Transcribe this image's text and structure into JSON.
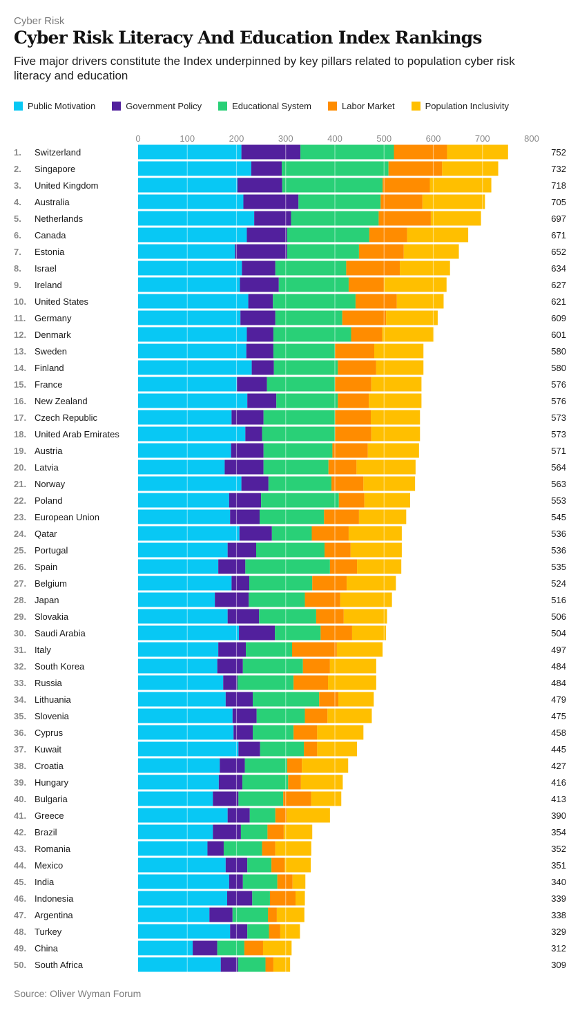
{
  "kicker": "Cyber Risk",
  "colors": {
    "public_motivation": "#08C8F4",
    "government_policy": "#52209D",
    "educational_system": "#29D077",
    "labor_market": "#FF8C00",
    "population_inclusivity": "#FFBF00"
  },
  "chart_data": {
    "type": "bar",
    "orientation": "horizontal",
    "stacked": true,
    "title": "Cyber Risk Literacy And Education Index Rankings",
    "subtitle": "Five major drivers constitute the Index underpinned by key pillars related to population cyber risk literacy and education",
    "xlabel": "",
    "ylabel": "",
    "xlim": [
      0,
      800
    ],
    "xticks": [
      0,
      100,
      200,
      300,
      400,
      500,
      600,
      700,
      800
    ],
    "grid": true,
    "legend_position": "top-left",
    "source": "Source: Oliver Wyman Forum",
    "categories": [
      "Switzerland",
      "Singapore",
      "United Kingdom",
      "Australia",
      "Netherlands",
      "Canada",
      "Estonia",
      "Israel",
      "Ireland",
      "United States",
      "Germany",
      "Denmark",
      "Sweden",
      "Finland",
      "France",
      "New Zealand",
      "Czech Republic",
      "United Arab Emirates",
      "Austria",
      "Latvia",
      "Norway",
      "Poland",
      "European Union",
      "Qatar",
      "Portugal",
      "Spain",
      "Belgium",
      "Japan",
      "Slovakia",
      "Saudi Arabia",
      "Italy",
      "South Korea",
      "Russia",
      "Lithuania",
      "Slovenia",
      "Cyprus",
      "Kuwait",
      "Croatia",
      "Hungary",
      "Bulgaria",
      "Greece",
      "Brazil",
      "Romania",
      "Mexico",
      "India",
      "Indonesia",
      "Argentina",
      "Turkey",
      "China",
      "South Africa"
    ],
    "ranks": [
      "1.",
      "2.",
      "3.",
      "4.",
      "5.",
      "6.",
      "7.",
      "8.",
      "9.",
      "10.",
      "11.",
      "12.",
      "13.",
      "14.",
      "15.",
      "16.",
      "17.",
      "18.",
      "19.",
      "20.",
      "21.",
      "22.",
      "23.",
      "24.",
      "25.",
      "26.",
      "27.",
      "28.",
      "29.",
      "30.",
      "31.",
      "32.",
      "33.",
      "34.",
      "35.",
      "36.",
      "37.",
      "38.",
      "39.",
      "40.",
      "41.",
      "42.",
      "43.",
      "44.",
      "45.",
      "46.",
      "47.",
      "48.",
      "49.",
      "50."
    ],
    "totals": [
      752,
      732,
      718,
      705,
      697,
      671,
      652,
      634,
      627,
      621,
      609,
      601,
      580,
      580,
      576,
      576,
      573,
      573,
      571,
      564,
      563,
      553,
      545,
      536,
      536,
      535,
      524,
      516,
      506,
      504,
      497,
      484,
      484,
      479,
      475,
      458,
      445,
      427,
      416,
      413,
      390,
      354,
      352,
      351,
      340,
      339,
      338,
      329,
      312,
      309
    ],
    "series": [
      {
        "name": "Public Motivation",
        "color_key": "public_motivation",
        "values": [
          210,
          230,
          202,
          214,
          236,
          221,
          197,
          211,
          207,
          224,
          208,
          221,
          220,
          231,
          201,
          222,
          190,
          218,
          189,
          176,
          210,
          185,
          187,
          206,
          182,
          163,
          190,
          156,
          182,
          205,
          163,
          161,
          173,
          178,
          192,
          194,
          204,
          166,
          164,
          152,
          182,
          152,
          141,
          178,
          185,
          181,
          145,
          187,
          111,
          168
        ]
      },
      {
        "name": "Government Policy",
        "color_key": "government_policy",
        "values": [
          120,
          62,
          91,
          112,
          75,
          82,
          106,
          68,
          79,
          50,
          71,
          54,
          55,
          45,
          61,
          59,
          65,
          34,
          66,
          79,
          55,
          65,
          60,
          66,
          58,
          55,
          36,
          69,
          64,
          73,
          56,
          52,
          29,
          55,
          49,
          39,
          44,
          51,
          48,
          52,
          45,
          57,
          33,
          44,
          28,
          51,
          47,
          35,
          50,
          35
        ]
      },
      {
        "name": "Educational System",
        "color_key": "educational_system",
        "values": [
          190,
          217,
          204,
          167,
          178,
          167,
          146,
          144,
          142,
          168,
          136,
          158,
          125,
          130,
          138,
          125,
          145,
          148,
          140,
          132,
          128,
          158,
          131,
          81,
          139,
          172,
          128,
          114,
          116,
          93,
          94,
          122,
          114,
          135,
          98,
          83,
          89,
          86,
          93,
          91,
          52,
          54,
          78,
          49,
          70,
          36,
          72,
          44,
          55,
          56
        ]
      },
      {
        "name": "Labor Market",
        "color_key": "labor_market",
        "values": [
          108,
          109,
          96,
          85,
          106,
          77,
          91,
          109,
          72,
          84,
          89,
          63,
          80,
          78,
          74,
          63,
          73,
          74,
          72,
          57,
          65,
          52,
          71,
          75,
          53,
          55,
          70,
          72,
          56,
          64,
          91,
          55,
          70,
          39,
          46,
          48,
          27,
          30,
          26,
          57,
          23,
          33,
          27,
          27,
          31,
          52,
          18,
          23,
          38,
          16
        ]
      },
      {
        "name": "Population Inclusivity",
        "color_key": "population_inclusivity",
        "values": [
          124,
          114,
          125,
          127,
          102,
          124,
          112,
          102,
          127,
          95,
          105,
          105,
          100,
          96,
          102,
          107,
          100,
          99,
          104,
          120,
          105,
          93,
          96,
          108,
          104,
          90,
          100,
          105,
          88,
          69,
          93,
          94,
          98,
          72,
          90,
          94,
          81,
          94,
          85,
          61,
          88,
          58,
          73,
          53,
          26,
          19,
          56,
          40,
          58,
          34
        ]
      }
    ]
  }
}
